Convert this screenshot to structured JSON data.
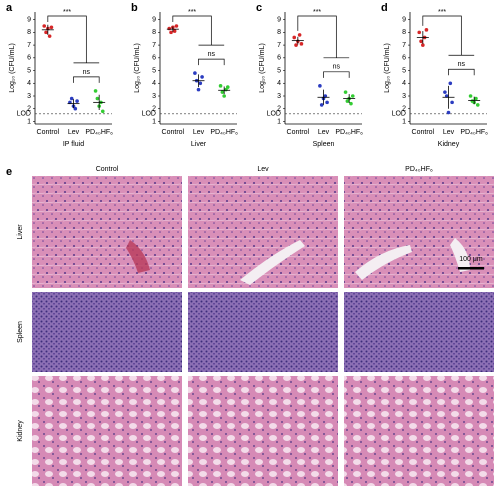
{
  "chart_data": [
    {
      "panel": "a",
      "type": "dot",
      "xlabel": "IP fluid",
      "ylabel": "Log₁₀ (CFU/mL)",
      "categories": [
        "Control",
        "Lev",
        "PD₄₀HF₆"
      ],
      "colors": [
        "#d62728",
        "#2b3cc0",
        "#33cc33"
      ],
      "points": [
        [
          8.5,
          8.0,
          8.3,
          7.7,
          8.4
        ],
        [
          2.5,
          2.8,
          2.2,
          2.0,
          2.6
        ],
        [
          3.4,
          2.8,
          2.2,
          2.5,
          1.8
        ]
      ],
      "means": [
        8.2,
        2.4,
        2.5
      ],
      "sds": [
        0.4,
        0.35,
        0.6
      ],
      "ylim": [
        0.8,
        9.6
      ],
      "yticks": [
        1,
        {
          "value": 1.6,
          "label": "LOD"
        },
        2,
        3,
        4,
        5,
        6,
        7,
        8,
        9
      ],
      "annotations": [
        "***",
        "ns"
      ]
    },
    {
      "panel": "b",
      "type": "dot",
      "xlabel": "Liver",
      "ylabel": "Log₁₀ (CFU/mL)",
      "categories": [
        "Control",
        "Lev",
        "PD₄₀HF₆"
      ],
      "colors": [
        "#d62728",
        "#2b3cc0",
        "#33cc33"
      ],
      "points": [
        [
          8.3,
          8.0,
          8.4,
          8.1,
          8.5
        ],
        [
          4.8,
          4.2,
          3.5,
          4.0,
          4.5
        ],
        [
          3.8,
          3.3,
          3.0,
          3.5,
          3.7
        ]
      ],
      "means": [
        8.25,
        4.2,
        3.45
      ],
      "sds": [
        0.2,
        0.5,
        0.3
      ],
      "ylim": [
        0.8,
        9.6
      ],
      "yticks": [
        1,
        {
          "value": 1.6,
          "label": "LOD"
        },
        2,
        3,
        4,
        5,
        6,
        7,
        8,
        9
      ],
      "annotations": [
        "***",
        "ns"
      ]
    },
    {
      "panel": "c",
      "type": "dot",
      "xlabel": "Spleen",
      "ylabel": "Log₁₀ (CFU/mL)",
      "categories": [
        "Control",
        "Lev",
        "PD₄₀HF₆"
      ],
      "colors": [
        "#d62728",
        "#2b3cc0",
        "#33cc33"
      ],
      "points": [
        [
          7.6,
          7.0,
          7.3,
          7.8,
          7.1
        ],
        [
          3.8,
          2.3,
          2.8,
          3.0,
          2.5
        ],
        [
          3.3,
          2.6,
          2.8,
          2.4,
          3.0
        ]
      ],
      "means": [
        7.35,
        2.9,
        2.8
      ],
      "sds": [
        0.3,
        0.6,
        0.35
      ],
      "ylim": [
        0.8,
        9.6
      ],
      "yticks": [
        1,
        {
          "value": 1.6,
          "label": "LOD"
        },
        2,
        3,
        4,
        5,
        6,
        7,
        8,
        9
      ],
      "annotations": [
        "***",
        "ns"
      ]
    },
    {
      "panel": "d",
      "type": "dot",
      "xlabel": "Kidney",
      "ylabel": "Log₁₀ (CFU/mL)",
      "categories": [
        "Control",
        "Lev",
        "PD₄₀HF₆"
      ],
      "colors": [
        "#d62728",
        "#2b3cc0",
        "#33cc33"
      ],
      "points": [
        [
          8.0,
          7.3,
          7.0,
          7.6,
          8.2
        ],
        [
          3.3,
          3.0,
          1.7,
          4.0,
          2.5
        ],
        [
          3.0,
          2.6,
          2.5,
          2.8,
          2.3
        ]
      ],
      "means": [
        7.6,
        2.9,
        2.65
      ],
      "sds": [
        0.5,
        0.9,
        0.3
      ],
      "ylim": [
        0.8,
        9.6
      ],
      "yticks": [
        1,
        {
          "value": 1.6,
          "label": "LOD"
        },
        2,
        3,
        4,
        5,
        6,
        7,
        8,
        9
      ],
      "annotations": [
        "***",
        "ns"
      ]
    }
  ],
  "histology": {
    "panel": "e",
    "columns": [
      "Control",
      "Lev",
      "PD₄₀HF₆"
    ],
    "rows": [
      "Liver",
      "Spleen",
      "Kidney"
    ],
    "scale_bar": "100 μm"
  }
}
